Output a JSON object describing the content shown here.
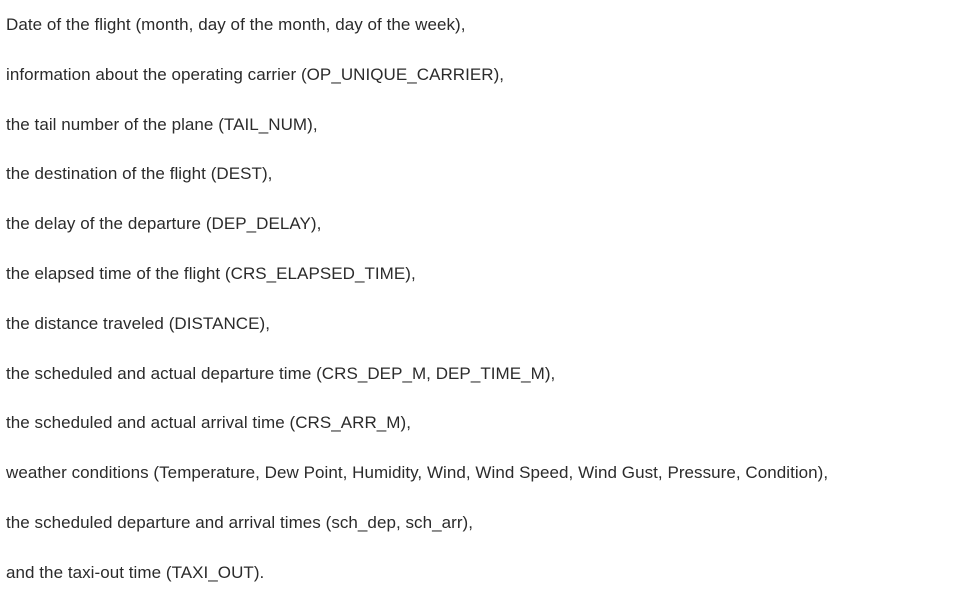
{
  "document": {
    "lines": [
      "Date of the flight (month, day of the month, day of the week),",
      "information about the operating carrier (OP_UNIQUE_CARRIER),",
      "the tail number of the plane (TAIL_NUM),",
      "the destination of the flight (DEST),",
      "the delay of the departure (DEP_DELAY),",
      "the elapsed time of the flight (CRS_ELAPSED_TIME),",
      "the distance traveled (DISTANCE),",
      "the scheduled and actual departure time (CRS_DEP_M, DEP_TIME_M),",
      "the scheduled and actual arrival time (CRS_ARR_M),",
      "weather conditions (Temperature, Dew Point, Humidity, Wind, Wind Speed, Wind Gust, Pressure, Condition),",
      "the scheduled departure and arrival times (sch_dep, sch_arr),",
      "and the taxi-out time (TAXI_OUT)."
    ]
  }
}
